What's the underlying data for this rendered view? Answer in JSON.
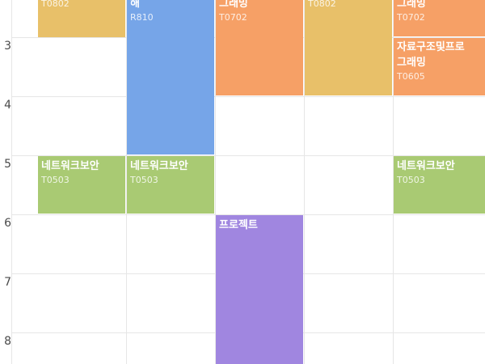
{
  "colors": {
    "yellow": "#e8c069",
    "blue": "#76a5e8",
    "orange": "#f6a066",
    "green": "#a9ca73",
    "purple": "#a086e0",
    "gridline": "#e6e6e6"
  },
  "time_labels": [
    "3",
    "4",
    "5",
    "6",
    "7",
    "8"
  ],
  "courses": {
    "mon_0802": {
      "code": "T0802",
      "color": "yellow"
    },
    "tue_810": {
      "title": "해",
      "code": "R810",
      "color": "blue"
    },
    "wed_programming": {
      "title": "그래밍",
      "code": "T0702",
      "color": "orange"
    },
    "thu_0802": {
      "code": "T0802",
      "color": "yellow"
    },
    "fri_programming": {
      "title": "그래밍",
      "code": "T0702",
      "color": "orange"
    },
    "fri_datastruct": {
      "title_line1": "자료구조및프로",
      "title_line2": "그래밍",
      "code": "T0605",
      "color": "orange"
    },
    "mon_netsec": {
      "title": "네트워크보안",
      "code": "T0503",
      "color": "green"
    },
    "tue_netsec": {
      "title": "네트워크보안",
      "code": "T0503",
      "color": "green"
    },
    "fri_netsec": {
      "title": "네트워크보안",
      "code": "T0503",
      "color": "green"
    },
    "wed_project": {
      "title": "프로젝트",
      "color": "purple"
    }
  }
}
